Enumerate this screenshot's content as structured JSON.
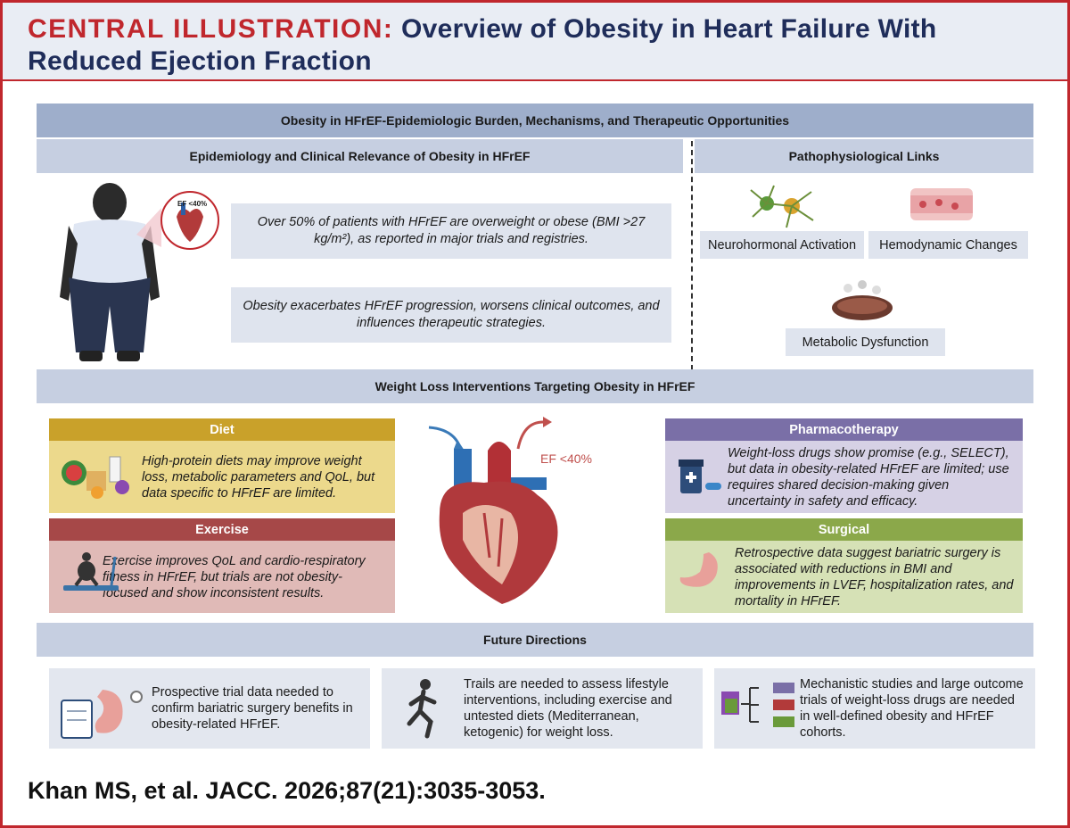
{
  "header": {
    "label": "CENTRAL ILLUSTRATION:",
    "title": "Overview of Obesity in Heart Failure With Reduced Ejection Fraction"
  },
  "banner": "Obesity in HFrEF-Epidemiologic Burden, Mechanisms, and Therapeutic Opportunities",
  "epidemiology": {
    "heading": "Epidemiology and Clinical Relevance of Obesity in HFrEF",
    "figure_label": "EF <40%",
    "facts": [
      "Over 50% of patients with HFrEF are overweight or obese (BMI >27 kg/m²), as reported in major trials and registries.",
      "Obesity exacerbates HFrEF progression, worsens clinical outcomes, and influences therapeutic strategies."
    ]
  },
  "pathophysiology": {
    "heading": "Pathophysiological Links",
    "links": [
      "Neurohormonal Activation",
      "Hemodynamic Changes",
      "Metabolic Dysfunction"
    ]
  },
  "interventions": {
    "heading": "Weight Loss Interventions Targeting Obesity in HFrEF",
    "heart_label": "EF <40%",
    "items": [
      {
        "title": "Diet",
        "text": "High-protein diets may improve weight loss, metabolic parameters and QoL, but data specific to HFrEF are limited."
      },
      {
        "title": "Exercise",
        "text": "Exercise improves QoL and cardio-respiratory fitness in HFrEF, but trials are not obesity-focused and show inconsistent results."
      },
      {
        "title": "Pharmacotherapy",
        "text": "Weight-loss drugs show promise (e.g., SELECT), but data in obesity-related HFrEF are limited; use requires shared decision-making given uncertainty in safety and efficacy."
      },
      {
        "title": "Surgical",
        "text": "Retrospective data suggest bariatric surgery is associated with reductions in BMI and improvements in LVEF, hospitalization rates, and mortality in HFrEF."
      }
    ]
  },
  "future": {
    "heading": "Future Directions",
    "items": [
      "Prospective trial data needed to confirm bariatric surgery benefits in obesity-related HFrEF.",
      "Trails are needed to assess lifestyle interventions, including exercise and untested diets (Mediterranean, ketogenic) for weight loss.",
      "Mechanistic studies and large outcome trials of weight-loss drugs are needed in well-defined obesity and HFrEF cohorts."
    ]
  },
  "citation": "Khan MS, et al. JACC. 2026;87(21):3035-3053."
}
